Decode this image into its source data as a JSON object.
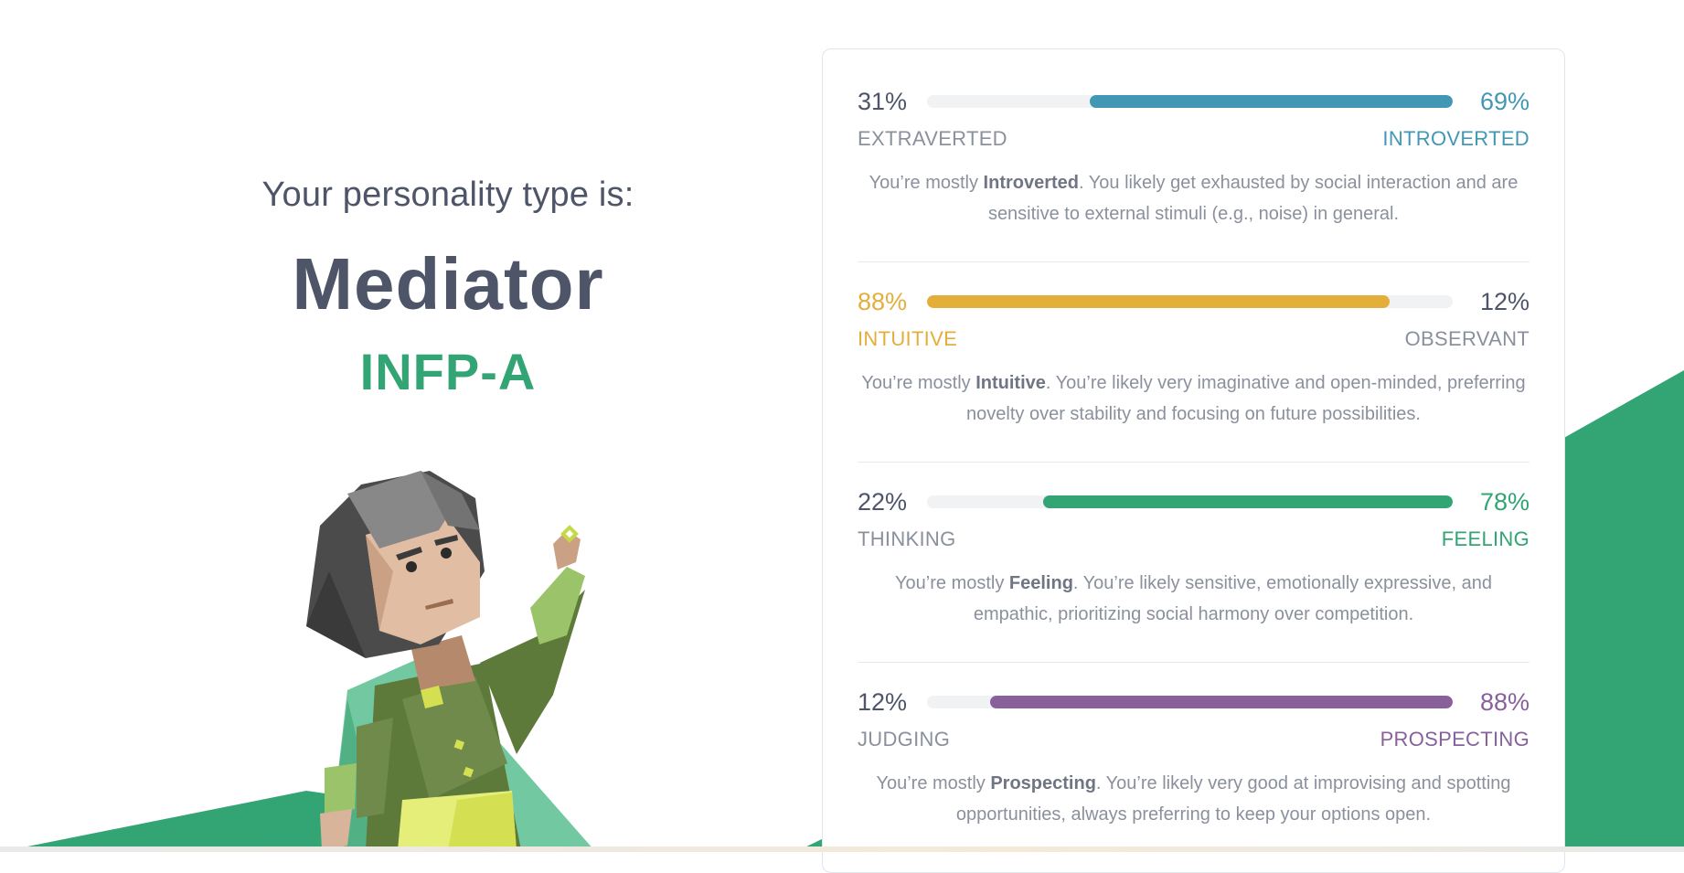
{
  "heading": {
    "intro": "Your personality type is:",
    "type_name": "Mediator",
    "type_code": "INFP-A"
  },
  "colors": {
    "blue": "#4298b4",
    "yellow": "#e4ae3a",
    "green": "#33a474",
    "purple": "#88619a",
    "muted": "#8a909c",
    "dark": "#4e5568"
  },
  "traits": [
    {
      "left_pct": "31%",
      "right_pct": "69%",
      "left_label": "EXTRAVERTED",
      "right_label": "INTROVERTED",
      "dominant": "right",
      "fill_fraction": 0.69,
      "color": "#4298b4",
      "desc_prefix": "You’re mostly ",
      "desc_bold": "Introverted",
      "desc_suffix": ". You likely get exhausted by social interaction and are sensitive to external stimuli (e.g., noise) in general."
    },
    {
      "left_pct": "88%",
      "right_pct": "12%",
      "left_label": "INTUITIVE",
      "right_label": "OBSERVANT",
      "dominant": "left",
      "fill_fraction": 0.88,
      "color": "#e4ae3a",
      "desc_prefix": "You’re mostly ",
      "desc_bold": "Intuitive",
      "desc_suffix": ". You’re likely very imaginative and open-minded, preferring novelty over stability and focusing on future possibilities."
    },
    {
      "left_pct": "22%",
      "right_pct": "78%",
      "left_label": "THINKING",
      "right_label": "FEELING",
      "dominant": "right",
      "fill_fraction": 0.78,
      "color": "#33a474",
      "desc_prefix": "You’re mostly ",
      "desc_bold": "Feeling",
      "desc_suffix": ". You’re likely sensitive, emotionally expressive, and empathic, prioritizing social harmony over competition."
    },
    {
      "left_pct": "12%",
      "right_pct": "88%",
      "left_label": "JUDGING",
      "right_label": "PROSPECTING",
      "dominant": "right",
      "fill_fraction": 0.88,
      "color": "#88619a",
      "desc_prefix": "You’re mostly ",
      "desc_bold": "Prospecting",
      "desc_suffix": ". You’re likely very good at improvising and spotting opportunities, always preferring to keep your options open."
    }
  ]
}
